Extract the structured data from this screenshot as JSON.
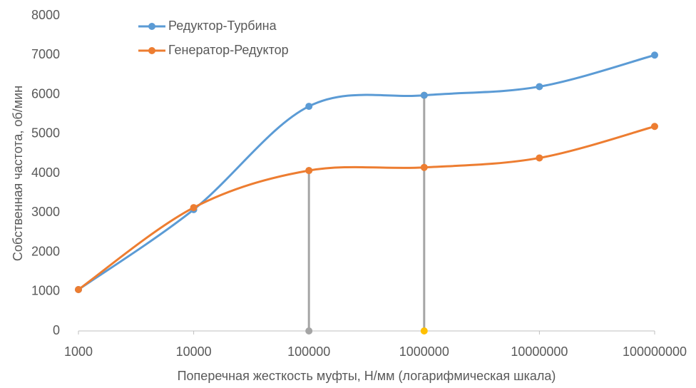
{
  "chart_data": {
    "type": "line",
    "x_label": "Поперечная жесткость муфты, Н/мм (логарифмическая шкала)",
    "y_label": "Собственная частота, об/мин",
    "x": [
      1000,
      10000,
      100000,
      1000000,
      10000000,
      100000000
    ],
    "series": [
      {
        "name": "Редуктор-Турбина",
        "color": "#5b9bd5",
        "values": [
          1050,
          3080,
          5700,
          5980,
          6200,
          7000
        ]
      },
      {
        "name": "Генератор-Редуктор",
        "color": "#ed7d31",
        "values": [
          1050,
          3130,
          4070,
          4150,
          4390,
          5190
        ]
      }
    ],
    "vlines": [
      {
        "x": 100000,
        "values": [
          0,
          4070
        ],
        "color": "#a5a5a5",
        "marker_color": "#a5a5a5"
      },
      {
        "x": 1000000,
        "values": [
          0,
          5980
        ],
        "color": "#a5a5a5",
        "marker_color": "#ffc000"
      }
    ],
    "xscale": "log",
    "xlim": [
      1000,
      100000000
    ],
    "xticks": [
      1000,
      10000,
      100000,
      1000000,
      10000000,
      100000000
    ],
    "ylim": [
      0,
      8000
    ],
    "yticks": [
      0,
      1000,
      2000,
      3000,
      4000,
      5000,
      6000,
      7000,
      8000
    ],
    "grid": false,
    "legend": "top-left",
    "smooth": true
  }
}
